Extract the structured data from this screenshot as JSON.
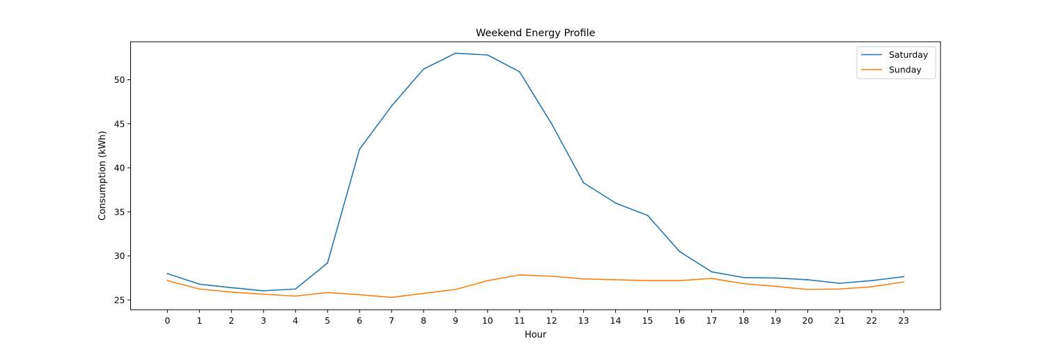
{
  "chart_data": {
    "type": "line",
    "title": "Weekend Energy Profile",
    "xlabel": "Hour",
    "ylabel": "Consumption (kWh)",
    "x": [
      0,
      1,
      2,
      3,
      4,
      5,
      6,
      7,
      8,
      9,
      10,
      11,
      12,
      13,
      14,
      15,
      16,
      17,
      18,
      19,
      20,
      21,
      22,
      23
    ],
    "xlim": [
      -1.15,
      24.15
    ],
    "ylim": [
      23.9,
      54.3
    ],
    "yticks": [
      25,
      30,
      35,
      40,
      45,
      50
    ],
    "grid": false,
    "legend_position": "top-right",
    "series": [
      {
        "name": "Saturday",
        "color": "#1f77b4",
        "values": [
          28.0,
          26.8,
          26.4,
          26.05,
          26.25,
          29.2,
          42.1,
          47.0,
          51.2,
          53.0,
          52.8,
          50.9,
          45.0,
          38.3,
          36.0,
          34.6,
          30.5,
          28.2,
          27.55,
          27.5,
          27.3,
          26.9,
          27.2,
          27.65
        ]
      },
      {
        "name": "Sunday",
        "color": "#ff7f0e",
        "values": [
          27.2,
          26.25,
          25.9,
          25.65,
          25.45,
          25.85,
          25.6,
          25.3,
          25.75,
          26.2,
          27.2,
          27.85,
          27.7,
          27.4,
          27.3,
          27.2,
          27.2,
          27.45,
          26.85,
          26.55,
          26.2,
          26.25,
          26.5,
          27.05
        ]
      }
    ]
  }
}
